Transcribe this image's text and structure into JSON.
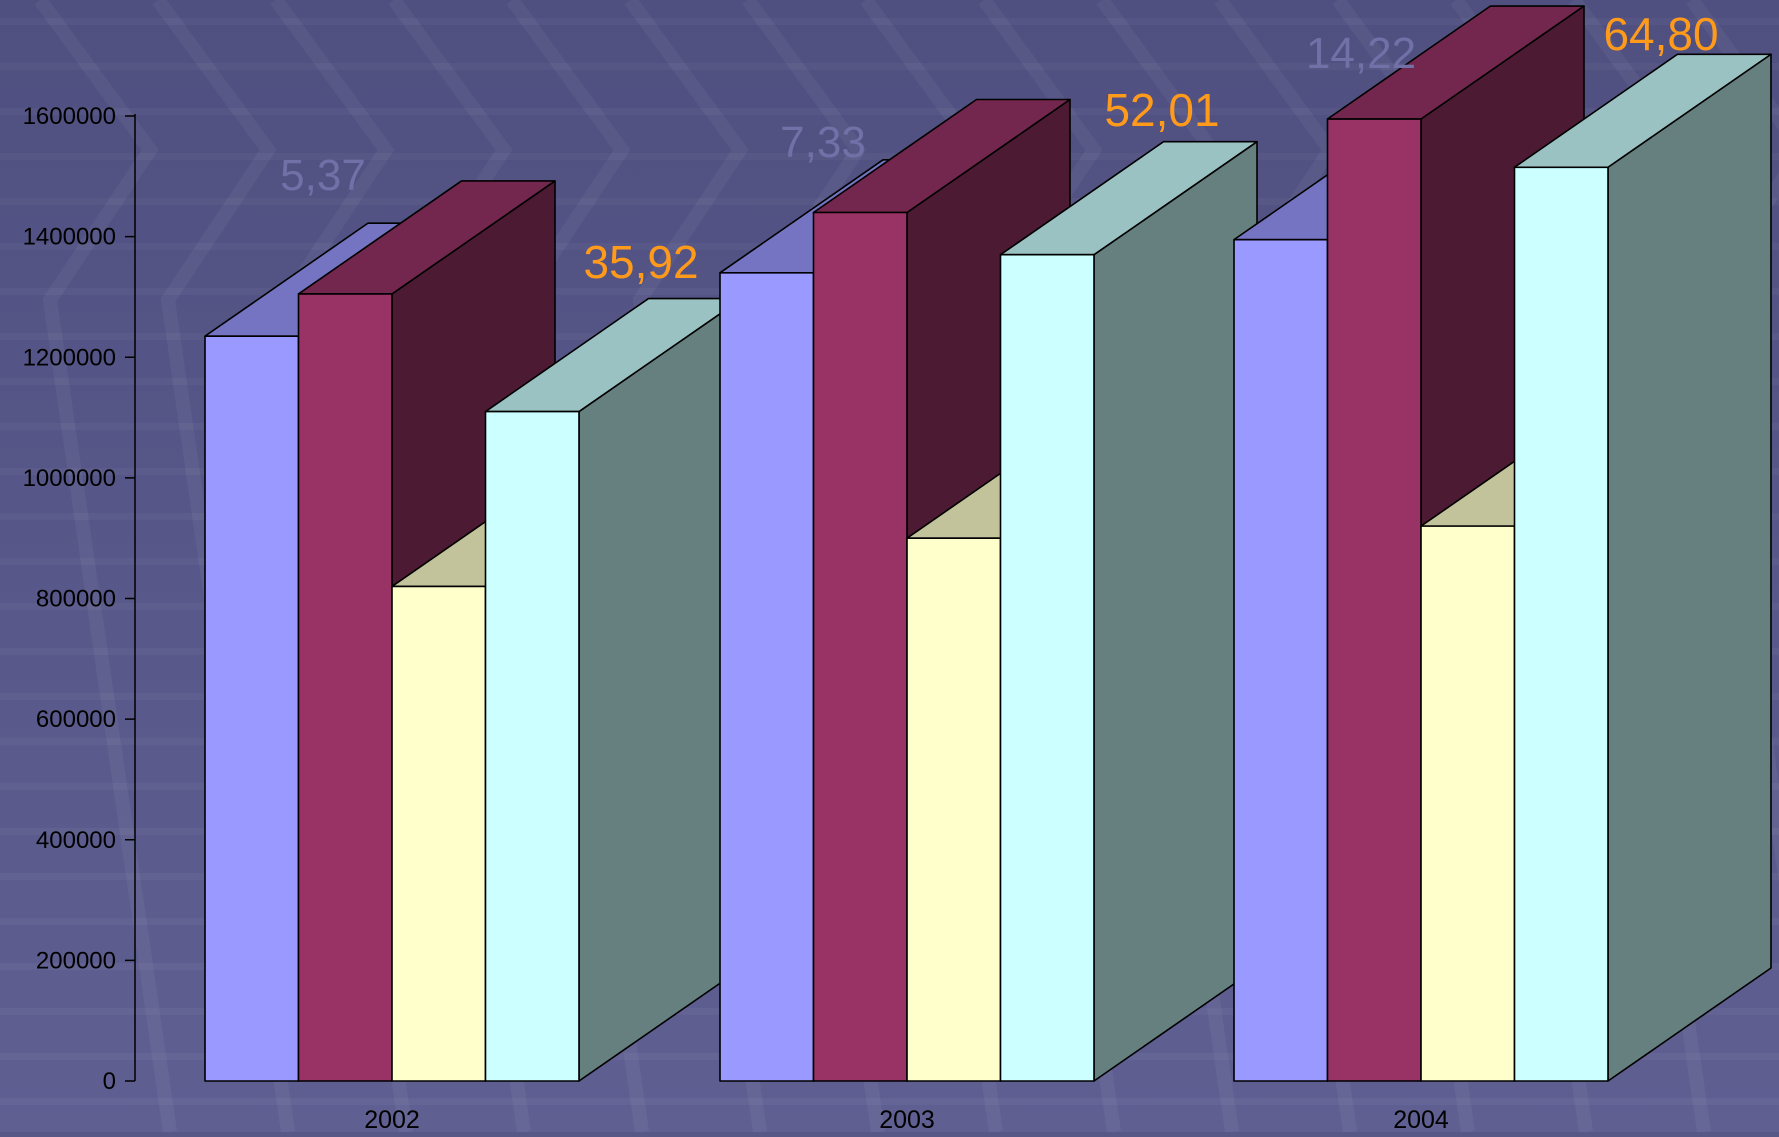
{
  "colors": {
    "background": "#585887",
    "axis": "#000000",
    "label_orange": "#FF9A1A",
    "label_faint": "#7171A8"
  },
  "chart_data": {
    "type": "bar",
    "title": "",
    "xlabel": "",
    "ylabel": "",
    "ylim": [
      0,
      1600000
    ],
    "yticks": [
      0,
      200000,
      400000,
      600000,
      800000,
      1000000,
      1200000,
      1400000,
      1600000
    ],
    "ytick_labels": [
      "0",
      "200000",
      "400000",
      "600000",
      "800000",
      "1000000",
      "1200000",
      "1400000",
      "1600000"
    ],
    "categories": [
      "2002",
      "2003",
      "2004"
    ],
    "grid": false,
    "legend": false,
    "three_d": true,
    "series": [
      {
        "color": "#9999FF",
        "values": [
          1235000,
          1340000,
          1395000
        ]
      },
      {
        "color": "#993366",
        "values": [
          1305000,
          1440000,
          1595000
        ]
      },
      {
        "color": "#FFFFCC",
        "values": [
          820000,
          900000,
          920000
        ]
      },
      {
        "color": "#CCFFFF",
        "values": [
          1110000,
          1370000,
          1515000
        ]
      }
    ],
    "annotations": [
      {
        "text": "5,37",
        "category": "2002",
        "style": "faint"
      },
      {
        "text": "35,92",
        "category": "2002",
        "style": "orange"
      },
      {
        "text": "7,33",
        "category": "2003",
        "style": "faint"
      },
      {
        "text": "52,01",
        "category": "2003",
        "style": "orange"
      },
      {
        "text": "14,22",
        "category": "2004",
        "style": "faint"
      },
      {
        "text": "64,80",
        "category": "2004",
        "style": "orange"
      }
    ]
  }
}
